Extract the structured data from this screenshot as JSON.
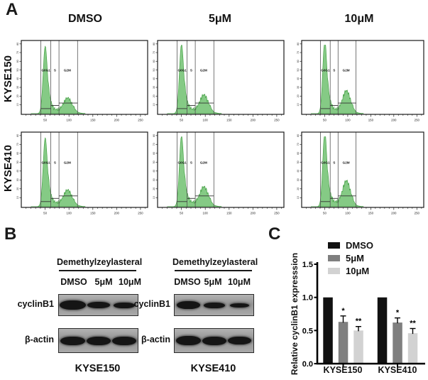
{
  "panel_a": {
    "label": "A",
    "column_titles": [
      "DMSO",
      "5μM",
      "10μM"
    ],
    "row_labels": [
      "KYSE150",
      "KYSE410"
    ],
    "gate_labels": [
      "G0G1",
      "S",
      "G2M"
    ],
    "x_tick_labels": [
      "50",
      "100",
      "150",
      "200",
      "250"
    ],
    "y_tick_labels": [
      "10",
      "20",
      "30",
      "40",
      "50",
      "60",
      "70",
      "80"
    ]
  },
  "panel_b": {
    "label": "B",
    "row_labels": [
      "cyclinB1",
      "β-actin"
    ],
    "blots": [
      {
        "compound": "Demethylzeylasteral",
        "lanes": [
          "DMSO",
          "5μM",
          "10μM"
        ],
        "cell_line": "KYSE150",
        "cyclinB1_bands": [
          [
            37,
            13
          ],
          [
            32,
            9
          ],
          [
            30,
            8
          ]
        ],
        "actin_bands": [
          [
            35,
            12
          ],
          [
            34,
            12
          ],
          [
            34,
            12
          ]
        ]
      },
      {
        "compound": "Demethylzeylasteral",
        "lanes": [
          "DMSO",
          "5μM",
          "10μM"
        ],
        "cell_line": "KYSE410",
        "cyclinB1_bands": [
          [
            33,
            11
          ],
          [
            30,
            8
          ],
          [
            27,
            6
          ]
        ],
        "actin_bands": [
          [
            35,
            13
          ],
          [
            34,
            12
          ],
          [
            33,
            11
          ]
        ]
      }
    ]
  },
  "panel_c": {
    "label": "C"
  },
  "chart_data": [
    {
      "type": "bar",
      "categories": [
        "KYSE150",
        "KYSE410"
      ],
      "series": [
        {
          "name": "DMSO",
          "color": "#111111",
          "values": [
            1.0,
            1.0
          ],
          "errors": [
            0,
            0
          ],
          "significance": [
            "",
            ""
          ]
        },
        {
          "name": "5μM",
          "color": "#7f7f7f",
          "values": [
            0.63,
            0.62
          ],
          "errors": [
            0.09,
            0.07
          ],
          "significance": [
            "*",
            "*"
          ]
        },
        {
          "name": "10μM",
          "color": "#d2d2d2",
          "values": [
            0.5,
            0.46
          ],
          "errors": [
            0.06,
            0.07
          ],
          "significance": [
            "**",
            "**"
          ]
        }
      ],
      "ylabel": "Relative cyclinB1 expresssion",
      "ylim": [
        0,
        1.5
      ],
      "yticks": [
        0.0,
        0.5,
        1.0,
        1.5
      ],
      "grid": false,
      "legend_position": "top-left"
    },
    {
      "type": "histogram",
      "description": "Flow cytometry cell-cycle histograms, panel A (green DNA-content histograms with G0G1 / S / G2M gates)",
      "x_max": 265,
      "x_ticks": [
        50,
        100,
        150,
        200,
        250
      ],
      "gates": {
        "G0G1": [
          41,
          62
        ],
        "S": [
          62,
          79
        ],
        "G2M": [
          79,
          118
        ]
      },
      "plots": [
        {
          "cell_line": "KYSE150",
          "treatment": "DMSO",
          "g0g1_peak": 0.93,
          "s_level": 0.055,
          "g2m_peak": 0.17
        },
        {
          "cell_line": "KYSE150",
          "treatment": "5μM",
          "g0g1_peak": 0.96,
          "s_level": 0.06,
          "g2m_peak": 0.21
        },
        {
          "cell_line": "KYSE150",
          "treatment": "10μM",
          "g0g1_peak": 1.02,
          "s_level": 0.06,
          "g2m_peak": 0.27
        },
        {
          "cell_line": "KYSE410",
          "treatment": "DMSO",
          "g0g1_peak": 0.93,
          "s_level": 0.055,
          "g2m_peak": 0.18
        },
        {
          "cell_line": "KYSE410",
          "treatment": "5μM",
          "g0g1_peak": 0.96,
          "s_level": 0.06,
          "g2m_peak": 0.22
        },
        {
          "cell_line": "KYSE410",
          "treatment": "10μM",
          "g0g1_peak": 1.02,
          "s_level": 0.065,
          "g2m_peak": 0.3
        }
      ],
      "fill_color": "#7ec77e"
    }
  ]
}
